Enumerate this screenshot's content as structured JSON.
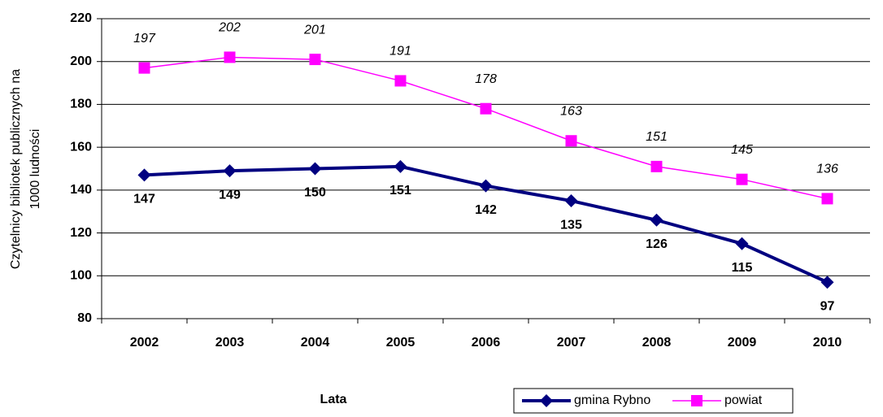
{
  "chart_data": {
    "type": "line",
    "ylabel": [
      "Czytelnicy bibliotek publicznych na",
      "1000 ludności"
    ],
    "xlabel": "Lata",
    "categories": [
      "2002",
      "2003",
      "2004",
      "2005",
      "2006",
      "2007",
      "2008",
      "2009",
      "2010"
    ],
    "series": [
      {
        "name": "gmina Rybno",
        "color": "#000080",
        "marker": "diamond",
        "values": [
          147,
          149,
          150,
          151,
          142,
          135,
          126,
          115,
          97
        ]
      },
      {
        "name": "powiat",
        "color": "#ff00ff",
        "marker": "square",
        "values": [
          197,
          202,
          201,
          191,
          178,
          163,
          151,
          145,
          136
        ]
      }
    ],
    "ylim": [
      80,
      220
    ],
    "yticks": [
      80,
      100,
      120,
      140,
      160,
      180,
      200,
      220
    ],
    "grid": true,
    "legend": "bottom"
  }
}
